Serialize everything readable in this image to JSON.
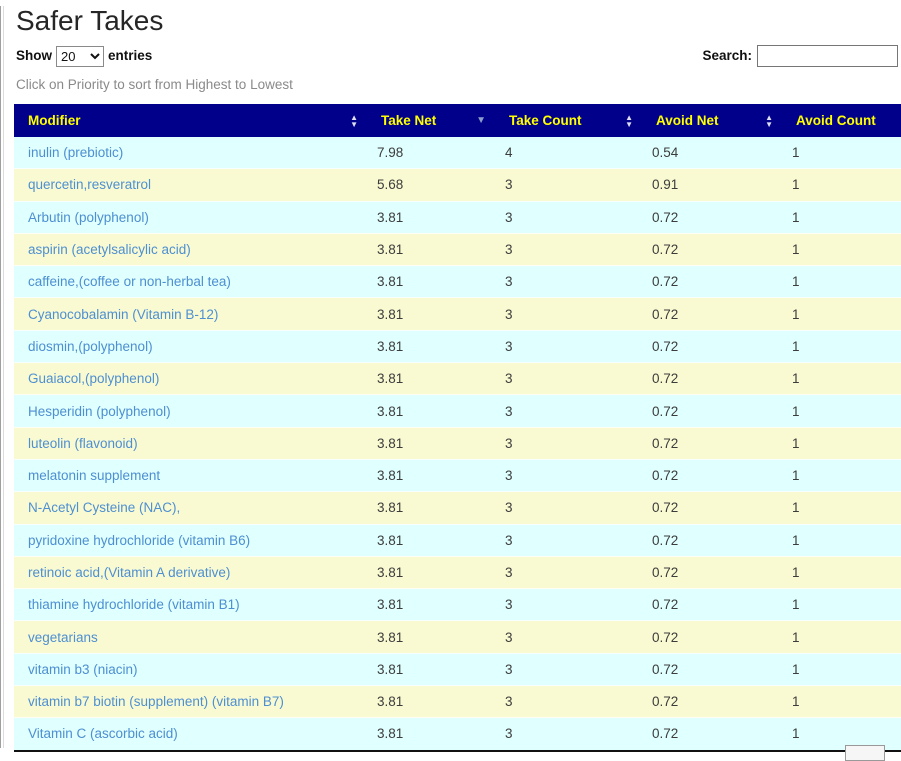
{
  "page": {
    "title": "Safer Takes",
    "length_menu": {
      "prefix": "Show",
      "value": "20",
      "suffix": "entries"
    },
    "search_label": "Search:",
    "search_value": "",
    "caption": "Click on Priority to sort from Highest to Lowest"
  },
  "colors": {
    "header_bg": "#00008B",
    "header_text": "#FFFF00",
    "row_even_bg": "#E0FFFF",
    "row_odd_bg": "#FAFAD2",
    "link": "#4D8FD1",
    "active_sort_arrow": "#8C9FCB"
  },
  "table": {
    "columns": [
      {
        "label": "Modifier",
        "sort": "both"
      },
      {
        "label": "Take Net",
        "sort": "desc"
      },
      {
        "label": "Take Count",
        "sort": "both"
      },
      {
        "label": "Avoid Net",
        "sort": "both"
      },
      {
        "label": "Avoid Count",
        "sort": "both"
      }
    ],
    "rows": [
      {
        "modifier": "inulin (prebiotic)",
        "take_net": "7.98",
        "take_count": "4",
        "avoid_net": "0.54",
        "avoid_count": "1"
      },
      {
        "modifier": "quercetin,resveratrol",
        "take_net": "5.68",
        "take_count": "3",
        "avoid_net": "0.91",
        "avoid_count": "1"
      },
      {
        "modifier": "Arbutin (polyphenol)",
        "take_net": "3.81",
        "take_count": "3",
        "avoid_net": "0.72",
        "avoid_count": "1"
      },
      {
        "modifier": "aspirin (acetylsalicylic acid)",
        "take_net": "3.81",
        "take_count": "3",
        "avoid_net": "0.72",
        "avoid_count": "1"
      },
      {
        "modifier": "caffeine,(coffee or non-herbal tea)",
        "take_net": "3.81",
        "take_count": "3",
        "avoid_net": "0.72",
        "avoid_count": "1"
      },
      {
        "modifier": "Cyanocobalamin (Vitamin B-12)",
        "take_net": "3.81",
        "take_count": "3",
        "avoid_net": "0.72",
        "avoid_count": "1"
      },
      {
        "modifier": "diosmin,(polyphenol)",
        "take_net": "3.81",
        "take_count": "3",
        "avoid_net": "0.72",
        "avoid_count": "1"
      },
      {
        "modifier": "Guaiacol,(polyphenol)",
        "take_net": "3.81",
        "take_count": "3",
        "avoid_net": "0.72",
        "avoid_count": "1"
      },
      {
        "modifier": "Hesperidin (polyphenol)",
        "take_net": "3.81",
        "take_count": "3",
        "avoid_net": "0.72",
        "avoid_count": "1"
      },
      {
        "modifier": "luteolin (flavonoid)",
        "take_net": "3.81",
        "take_count": "3",
        "avoid_net": "0.72",
        "avoid_count": "1"
      },
      {
        "modifier": "melatonin supplement",
        "take_net": "3.81",
        "take_count": "3",
        "avoid_net": "0.72",
        "avoid_count": "1"
      },
      {
        "modifier": "N-Acetyl Cysteine (NAC),",
        "take_net": "3.81",
        "take_count": "3",
        "avoid_net": "0.72",
        "avoid_count": "1"
      },
      {
        "modifier": "pyridoxine hydrochloride (vitamin B6)",
        "take_net": "3.81",
        "take_count": "3",
        "avoid_net": "0.72",
        "avoid_count": "1"
      },
      {
        "modifier": "retinoic acid,(Vitamin A derivative)",
        "take_net": "3.81",
        "take_count": "3",
        "avoid_net": "0.72",
        "avoid_count": "1"
      },
      {
        "modifier": "thiamine hydrochloride (vitamin B1)",
        "take_net": "3.81",
        "take_count": "3",
        "avoid_net": "0.72",
        "avoid_count": "1"
      },
      {
        "modifier": "vegetarians",
        "take_net": "3.81",
        "take_count": "3",
        "avoid_net": "0.72",
        "avoid_count": "1"
      },
      {
        "modifier": "vitamin b3 (niacin)",
        "take_net": "3.81",
        "take_count": "3",
        "avoid_net": "0.72",
        "avoid_count": "1"
      },
      {
        "modifier": "vitamin b7 biotin (supplement) (vitamin B7)",
        "take_net": "3.81",
        "take_count": "3",
        "avoid_net": "0.72",
        "avoid_count": "1"
      },
      {
        "modifier": "Vitamin C (ascorbic acid)",
        "take_net": "3.81",
        "take_count": "3",
        "avoid_net": "0.72",
        "avoid_count": "1"
      }
    ]
  }
}
